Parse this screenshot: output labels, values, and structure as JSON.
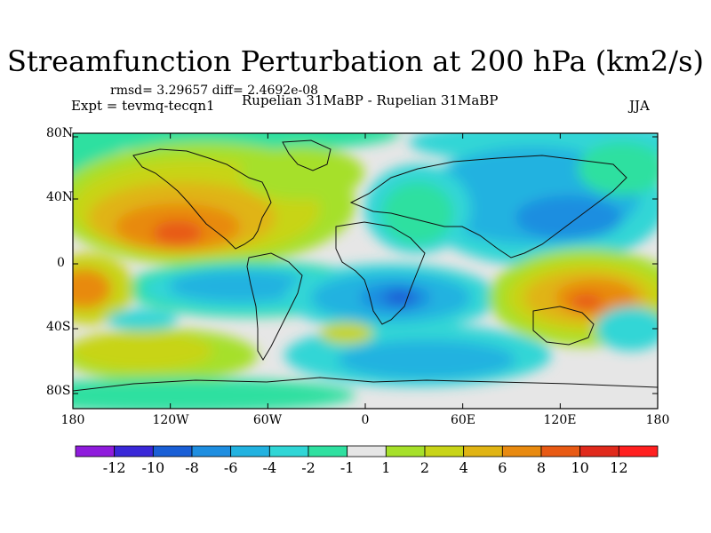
{
  "title": "Streamfunction Perturbation at 200 hPa (km2/s)",
  "stats_text": "rmsd= 3.29657  diff= 2.4692e-08",
  "experiment_text": "Expt = tevmq-tecqn1",
  "comparison_text": "Rupelian  31MaBP - Rupelian  31MaBP",
  "season": "JJA",
  "y_ticks": [
    "80N",
    "40N",
    "0",
    "40S",
    "80S"
  ],
  "x_ticks": [
    "180",
    "120W",
    "60W",
    "0",
    "60E",
    "120E",
    "180"
  ],
  "colorbar": {
    "labels": [
      "-12",
      "-10",
      "-8",
      "-6",
      "-4",
      "-2",
      "-1",
      "1",
      "2",
      "4",
      "6",
      "8",
      "10",
      "12"
    ],
    "colors": [
      "#8f1cdc",
      "#3a28d8",
      "#1a5fd6",
      "#1e8ee0",
      "#22b2e0",
      "#30d6d6",
      "#2fe0a0",
      "#e6e6e6",
      "#a6e02a",
      "#c8d418",
      "#e0b414",
      "#e88a10",
      "#e85a14",
      "#e02a1c",
      "#ff2020"
    ]
  }
}
